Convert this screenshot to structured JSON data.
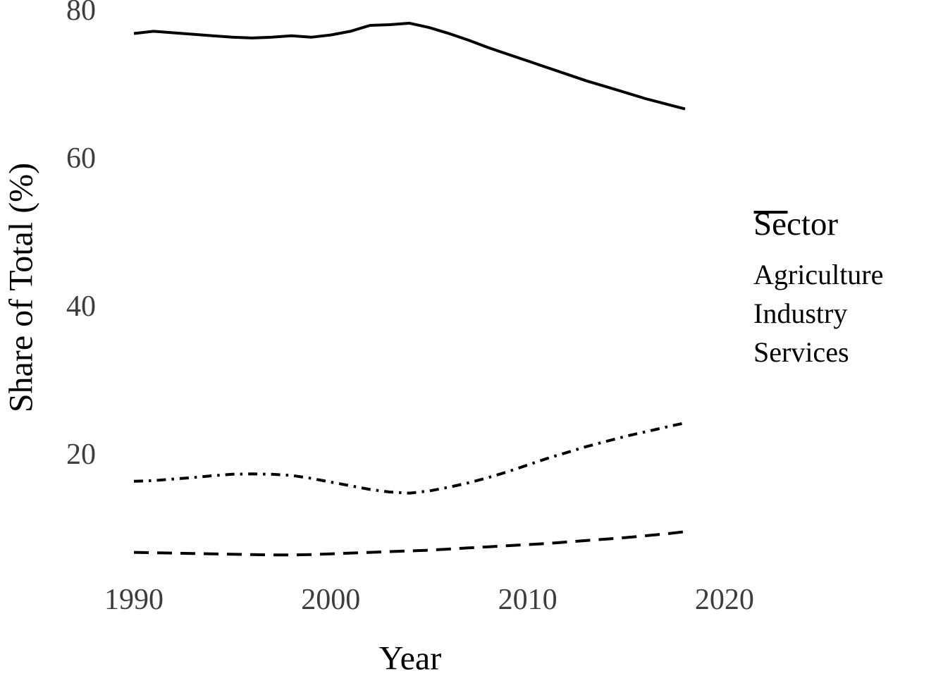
{
  "figure": {
    "background_color": "#ffffff",
    "line_color": "#000000",
    "tick_label_color": "#3d3d3d"
  },
  "chart_data": {
    "type": "line",
    "title": "",
    "xlabel": "Year",
    "ylabel": "Share of Total (%)",
    "grid": false,
    "axis_lines": false,
    "x_ticks": [
      1990,
      2000,
      2010,
      2020
    ],
    "y_ticks": [
      20,
      40,
      60,
      80
    ],
    "xlim": [
      1990,
      2018
    ],
    "ylim": [
      0,
      82
    ],
    "x": [
      1990,
      1991,
      1992,
      1993,
      1994,
      1995,
      1996,
      1997,
      1998,
      1999,
      2000,
      2001,
      2002,
      2003,
      2004,
      2005,
      2006,
      2007,
      2008,
      2009,
      2010,
      2011,
      2012,
      2013,
      2014,
      2015,
      2016,
      2017,
      2018
    ],
    "series": [
      {
        "name": "Agriculture",
        "linestyle": "solid",
        "values": [
          76.9,
          77.2,
          77.0,
          76.8,
          76.6,
          76.4,
          76.3,
          76.4,
          76.6,
          76.4,
          76.7,
          77.2,
          78.0,
          78.1,
          78.3,
          77.7,
          76.9,
          76.0,
          75.0,
          74.1,
          73.2,
          72.3,
          71.4,
          70.5,
          69.7,
          68.9,
          68.1,
          67.4,
          66.7
        ]
      },
      {
        "name": "Industry",
        "linestyle": "dashed",
        "values": [
          6.8,
          6.75,
          6.7,
          6.65,
          6.6,
          6.55,
          6.5,
          6.45,
          6.45,
          6.5,
          6.6,
          6.7,
          6.8,
          6.9,
          7.0,
          7.1,
          7.25,
          7.4,
          7.55,
          7.7,
          7.85,
          8.0,
          8.2,
          8.4,
          8.6,
          8.8,
          9.05,
          9.3,
          9.6
        ]
      },
      {
        "name": "Services",
        "linestyle": "dashdot",
        "values": [
          16.4,
          16.5,
          16.7,
          16.9,
          17.15,
          17.35,
          17.4,
          17.35,
          17.2,
          16.8,
          16.3,
          15.8,
          15.3,
          14.95,
          14.8,
          15.1,
          15.6,
          16.2,
          16.9,
          17.7,
          18.6,
          19.5,
          20.3,
          21.1,
          21.8,
          22.5,
          23.1,
          23.7,
          24.3
        ]
      }
    ],
    "legend": {
      "title": "Sector",
      "position": "right",
      "entries": [
        "Agriculture",
        "Industry",
        "Services"
      ]
    }
  }
}
